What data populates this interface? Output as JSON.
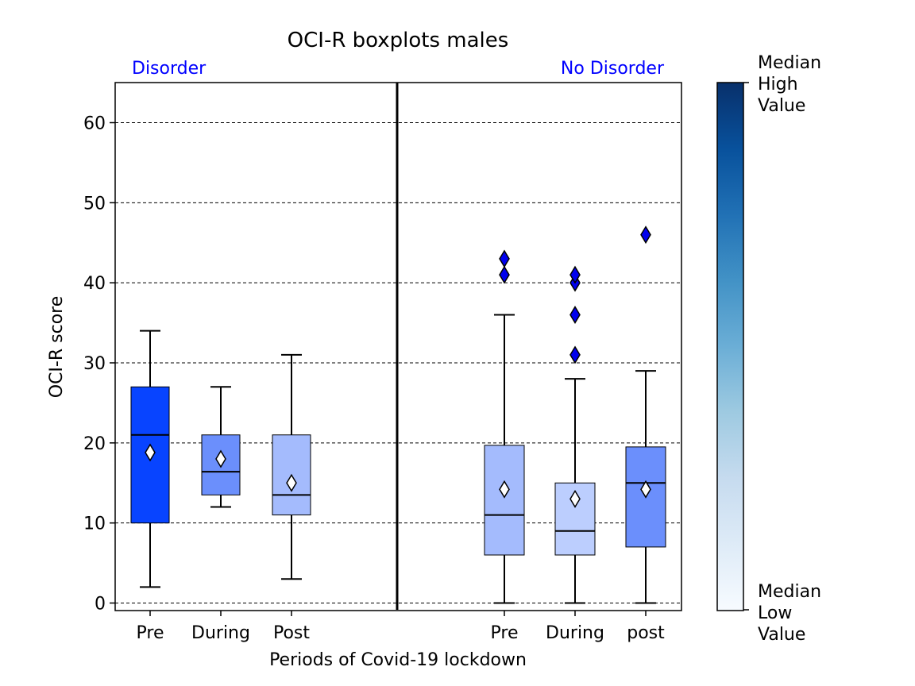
{
  "chart_data": {
    "type": "box",
    "title": "OCI-R boxplots males",
    "xlabel": "Periods of Covid-19 lockdown",
    "ylabel": "OCI-R score",
    "ylim": [
      -1,
      65
    ],
    "yticks": [
      0,
      10,
      20,
      30,
      40,
      50,
      60
    ],
    "grid": "horizontal dashed",
    "groups": [
      {
        "label": "Disorder",
        "boxes": [
          {
            "category": "Pre",
            "whisker_low": 2,
            "q1": 10,
            "median": 21,
            "q3": 27,
            "whisker_high": 34,
            "mean": 18.8,
            "outliers": [],
            "color": "#0844ff"
          },
          {
            "category": "During",
            "whisker_low": 12,
            "q1": 13.5,
            "median": 16.4,
            "q3": 21,
            "whisker_high": 27,
            "mean": 18,
            "outliers": [],
            "color": "#6b8ffc"
          },
          {
            "category": "Post",
            "whisker_low": 3,
            "q1": 11,
            "median": 13.5,
            "q3": 21,
            "whisker_high": 31,
            "mean": 15,
            "outliers": [],
            "color": "#a4bbfd"
          }
        ]
      },
      {
        "label": "No Disorder",
        "boxes": [
          {
            "category": "Pre",
            "whisker_low": 0,
            "q1": 6,
            "median": 11,
            "q3": 19.7,
            "whisker_high": 36,
            "mean": 14.2,
            "outliers": [
              41,
              43
            ],
            "color": "#a4bbfd"
          },
          {
            "category": "During",
            "whisker_low": 0,
            "q1": 6,
            "median": 9,
            "q3": 15,
            "whisker_high": 28,
            "mean": 13,
            "outliers": [
              31,
              36,
              40,
              41
            ],
            "color": "#bccefe"
          },
          {
            "category": "post",
            "whisker_low": 0,
            "q1": 7,
            "median": 15,
            "q3": 19.5,
            "whisker_high": 29,
            "mean": 14.2,
            "outliers": [
              46
            ],
            "color": "#6b8ffc"
          }
        ]
      }
    ],
    "outlier_color": "#0000ee",
    "mean_marker": "white diamond",
    "colorbar": {
      "high_label": "Median High Value",
      "low_label": "Median Low Value",
      "colormap": [
        "#f7fbff",
        "#deebf7",
        "#c6dbef",
        "#9ecae1",
        "#6baed6",
        "#4292c6",
        "#2171b5",
        "#08519c",
        "#08306b"
      ]
    },
    "group_label_color": "#0000ff"
  }
}
